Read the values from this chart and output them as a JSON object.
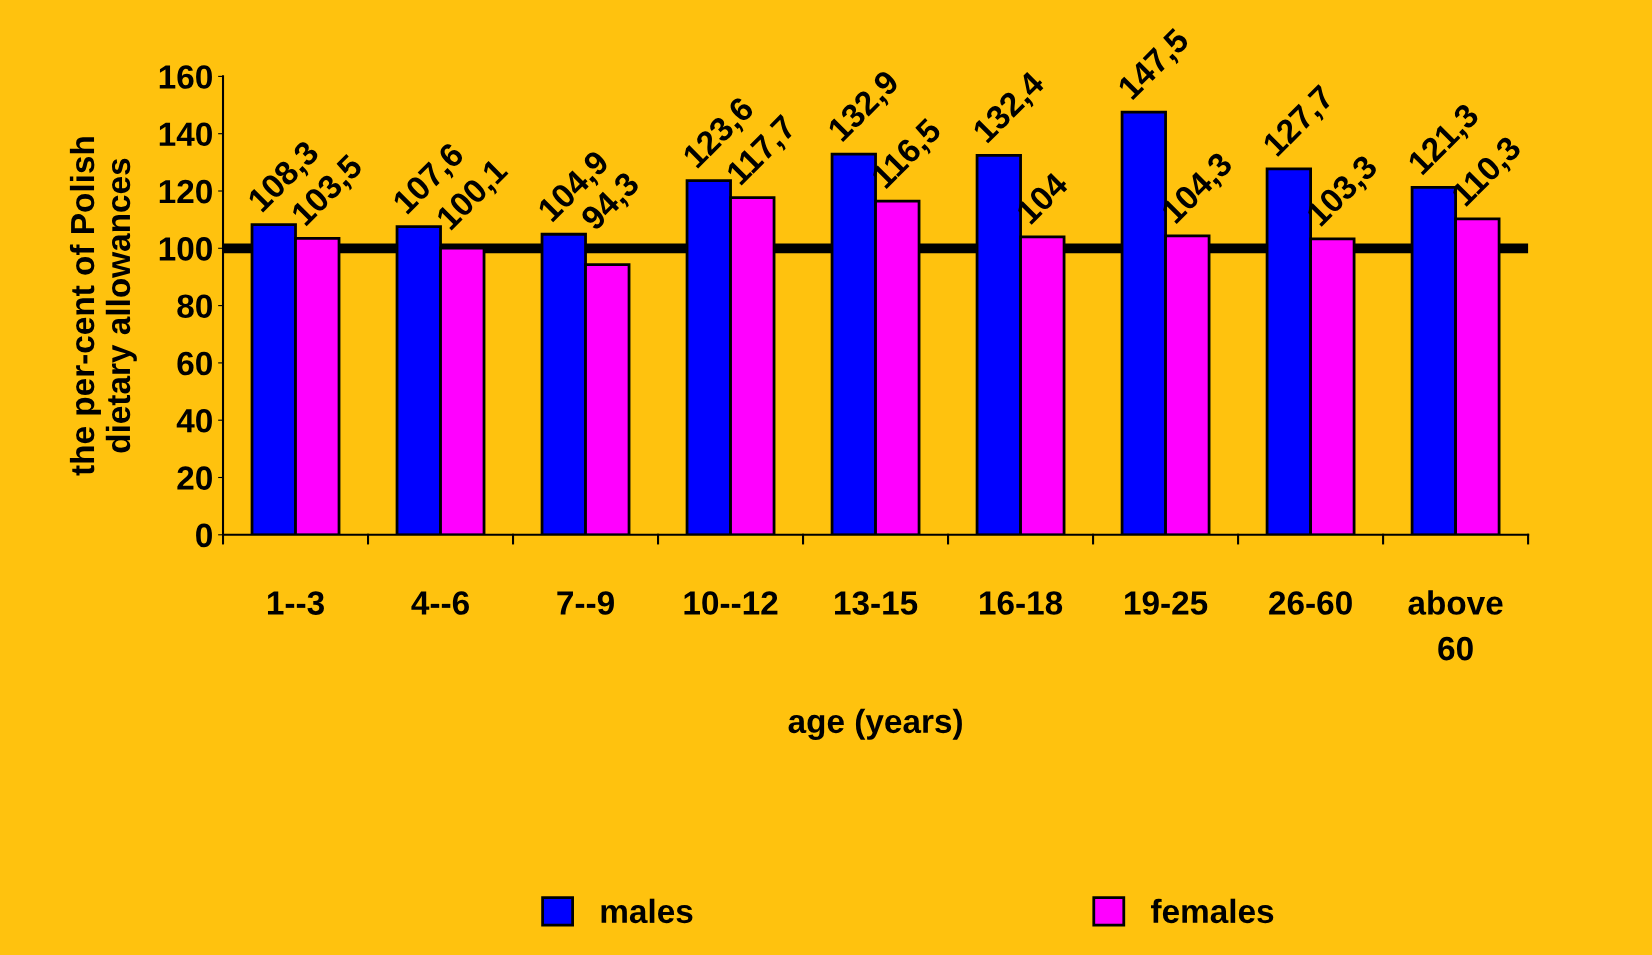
{
  "chart_data": {
    "type": "bar",
    "xlabel": "age (years)",
    "ylabel": "the per-cent of Polish\ndietary allowances",
    "categories": [
      "1--3",
      "4--6",
      "7--9",
      "10--12",
      "13-15",
      "16-18",
      "19-25",
      "26-60",
      "above\n60"
    ],
    "series": [
      {
        "name": "males",
        "color": "#0000ff",
        "values": [
          108.3,
          107.6,
          104.9,
          123.6,
          132.9,
          132.4,
          147.5,
          127.7,
          121.3
        ],
        "value_labels": [
          "108,3",
          "107,6",
          "104,9",
          "123,6",
          "132,9",
          "132,4",
          "147,5",
          "127,7",
          "121,3"
        ]
      },
      {
        "name": "females",
        "color": "#ff00ff",
        "values": [
          103.5,
          100.1,
          94.3,
          117.7,
          116.5,
          104,
          104.3,
          103.3,
          110.3
        ],
        "value_labels": [
          "103,5",
          "100,1",
          "94,3",
          "117,7",
          "116,5",
          "104",
          "104,3",
          "103,3",
          "110,3"
        ]
      }
    ],
    "ylim": [
      0,
      160
    ],
    "yticks": [
      0,
      20,
      40,
      60,
      80,
      100,
      120,
      140,
      160
    ],
    "ref_lines": [
      {
        "axis": "y",
        "value": 100,
        "color": "#000000"
      }
    ],
    "grid": false,
    "legend": "bottom"
  }
}
